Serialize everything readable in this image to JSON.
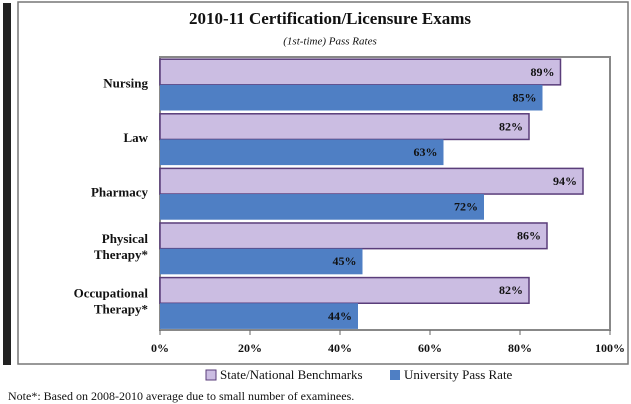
{
  "chart_data": {
    "type": "bar",
    "orientation": "horizontal",
    "title": "2010-11 Certification/Licensure Exams",
    "subtitle": "(1st-time) Pass Rates",
    "categories": [
      "Nursing",
      "Law",
      "Pharmacy",
      "Physical Therapy*",
      "Occupational Therapy*"
    ],
    "series": [
      {
        "name": "State/National Benchmarks",
        "color": "#cbbde2",
        "values": [
          89,
          82,
          94,
          86,
          82
        ],
        "value_labels": [
          "89%",
          "82%",
          "94%",
          "86%",
          "82%"
        ]
      },
      {
        "name": "University Pass Rate",
        "color": "#4f7fc4",
        "values": [
          85,
          63,
          72,
          45,
          44
        ],
        "value_labels": [
          "85%",
          "63%",
          "72%",
          "45%",
          "44%"
        ]
      }
    ],
    "xlim": [
      0,
      100
    ],
    "xticks": [
      {
        "value": 0,
        "label": "0%"
      },
      {
        "value": 20,
        "label": "20%"
      },
      {
        "value": 40,
        "label": "40%"
      },
      {
        "value": 60,
        "label": "60%"
      },
      {
        "value": 80,
        "label": "80%"
      },
      {
        "value": 100,
        "label": "100%"
      }
    ],
    "grid": false,
    "legend": "bottom",
    "note": "Note*: Based on 2008-2010 average due to small  number of examinees."
  }
}
